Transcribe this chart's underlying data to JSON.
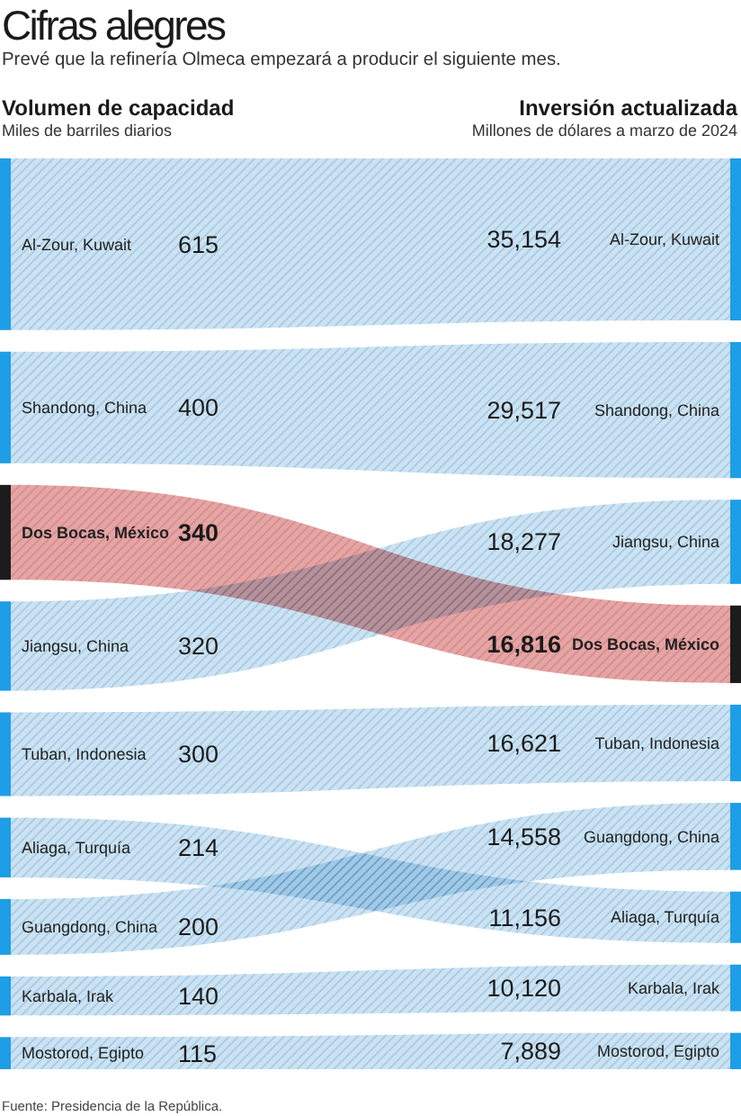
{
  "chart_data": {
    "type": "other",
    "title": "Cifras alegres",
    "subtitle": "Prevé que la refinería Olmeca empezará a producir el siguiente mes.",
    "categories": [
      "Al-Zour, Kuwait",
      "Shandong, China",
      "Dos Bocas, México",
      "Jiangsu, China",
      "Tuban, Indonesia",
      "Aliaga, Turquía",
      "Guangdong, China",
      "Karbala, Irak",
      "Mostorod, Egipto"
    ],
    "ylabel": "Miles de barriles diarios",
    "y2label": "Millones de dólares a marzo de 2024",
    "colors": [
      "#c8e3f5",
      "#c8e3f5",
      "#e8a3a3",
      "#c8e3f5",
      "#c8e3f5",
      "#c8e3f5",
      "#c8e3f5",
      "#c8e3f5",
      "#c8e3f5"
    ],
    "series": [
      {
        "name": "Volumen de capacidad",
        "values": [
          615,
          400,
          340,
          320,
          300,
          214,
          200,
          140,
          115
        ],
        "colors": [
          "#1e9ee6",
          "#1e9ee6",
          "#1c1c1c",
          "#1e9ee6",
          "#1e9ee6",
          "#1e9ee6",
          "#1e9ee6",
          "#1e9ee6",
          "#1e9ee6"
        ]
      },
      {
        "name": "Inversión actualizada",
        "axis": "y2",
        "values": [
          35154,
          29517,
          16816,
          18277,
          16621,
          11156,
          14558,
          10120,
          7889
        ],
        "value_labels": [
          "35,154",
          "29,517",
          "16,816",
          "18,277",
          "16,621",
          "11,156",
          "14,558",
          "10,120",
          "7,889"
        ],
        "colors": [
          "#1e9ee6",
          "#1e9ee6",
          "#1c1c1c",
          "#1e9ee6",
          "#1e9ee6",
          "#1e9ee6",
          "#1e9ee6",
          "#1e9ee6",
          "#1e9ee6"
        ]
      }
    ],
    "data_labels": true,
    "annotations": [
      "Fuente: Presidencia de la República."
    ]
  }
}
